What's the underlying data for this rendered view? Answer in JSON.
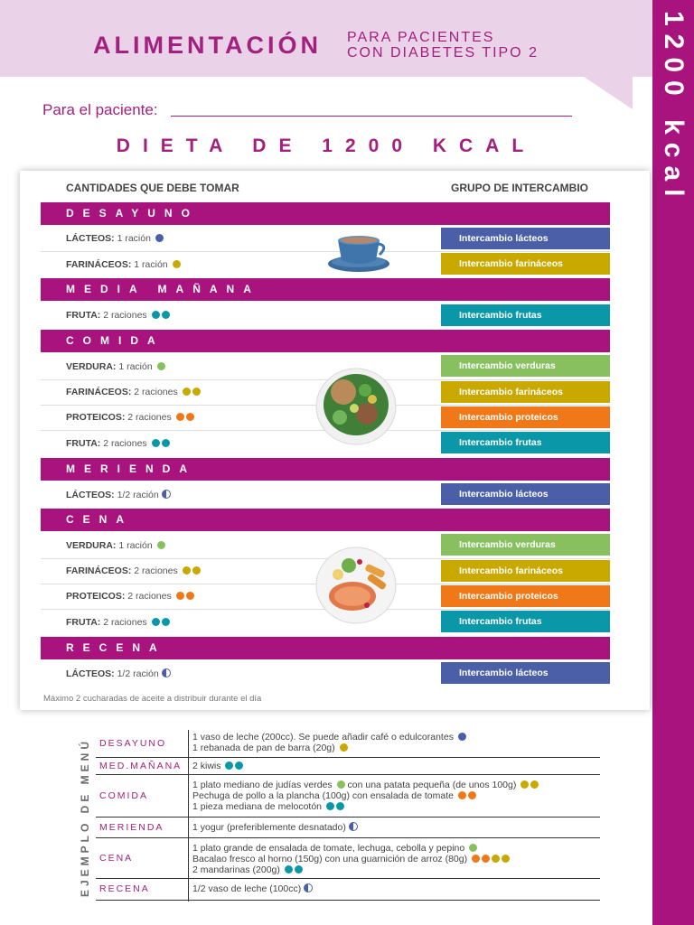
{
  "header": {
    "title": "ALIMENTACIÓN",
    "subtitle_line1": "PARA PACIENTES",
    "subtitle_line2": "CON DIABETES TIPO 2",
    "side_label": "1200 kcal"
  },
  "patient_label": "Para el paciente:",
  "diet_title": "DIETA DE 1200 KCAL",
  "table": {
    "col_quantities": "CANTIDADES QUE DEBE TOMAR",
    "col_group": "GRUPO DE INTERCAMBIO",
    "meals": {
      "desayuno": "DESAYUNO",
      "media": "MEDIA MAÑANA",
      "comida": "COMIDA",
      "merienda": "MERIENDA",
      "cena": "CENA",
      "recena": "RECENA"
    },
    "rows": {
      "d1_name": "LÁCTEOS:",
      "d1_amount": "1 ración",
      "d2_name": "FARINÁCEOS:",
      "d2_amount": "1 ración",
      "m1_name": "FRUTA:",
      "m1_amount": "2 raciones",
      "c1_name": "VERDURA:",
      "c1_amount": "1 ración",
      "c2_name": "FARINÁCEOS:",
      "c2_amount": "2 raciones",
      "c3_name": "PROTEICOS:",
      "c3_amount": "2 raciones",
      "c4_name": "FRUTA:",
      "c4_amount": "2 raciones",
      "me1_name": "LÁCTEOS:",
      "me1_amount": "1/2 ración",
      "ce1_name": "VERDURA:",
      "ce1_amount": "1 ración",
      "ce2_name": "FARINÁCEOS:",
      "ce2_amount": "2 raciones",
      "ce3_name": "PROTEICOS:",
      "ce3_amount": "2 raciones",
      "ce4_name": "FRUTA:",
      "ce4_amount": "2 raciones",
      "r1_name": "LÁCTEOS:",
      "r1_amount": "1/2 ración"
    },
    "exchanges": {
      "lacteos": "Intercambio lácteos",
      "farinaceos": "Intercambio farináceos",
      "frutas": "Intercambio frutas",
      "verduras": "Intercambio verduras",
      "proteicos": "Intercambio proteicos"
    },
    "footnote": "Máximo 2 cucharadas de aceite a distribuir durante el día"
  },
  "colors": {
    "magenta": "#a8137d",
    "lacteos": "#4a5fa8",
    "farinaceos": "#c9a800",
    "frutas": "#0a98a8",
    "verduras": "#88c060",
    "proteicos": "#f07818"
  },
  "menu": {
    "vertical_title": "EJEMPLO DE MENÚ",
    "desayuno_label": "DESAYUNO",
    "desayuno_l1": "1 vaso de leche (200cc). Se puede añadir café o edulcorantes",
    "desayuno_l2": "1 rebanada de pan de barra (20g)",
    "media_label": "MED.MAÑANA",
    "media_l1": "2 kiwis",
    "comida_label": "COMIDA",
    "comida_l1": "1 plato mediano de judías verdes",
    "comida_l1b": "con una patata pequeña (de unos 100g)",
    "comida_l2": "Pechuga de pollo a la plancha (100g) con ensalada de tomate",
    "comida_l3": "1 pieza mediana de melocotón",
    "merienda_label": "MERIENDA",
    "merienda_l1": "1 yogur (preferiblemente desnatado)",
    "cena_label": "CENA",
    "cena_l1": "1 plato grande de ensalada de tomate, lechuga, cebolla y pepino",
    "cena_l2": "Bacalao fresco al horno (150g) con una guarnición de arroz (80g)",
    "cena_l3": "2 mandarinas (200g)",
    "recena_label": "RECENA",
    "recena_l1": "1/2 vaso de leche (100cc)"
  }
}
